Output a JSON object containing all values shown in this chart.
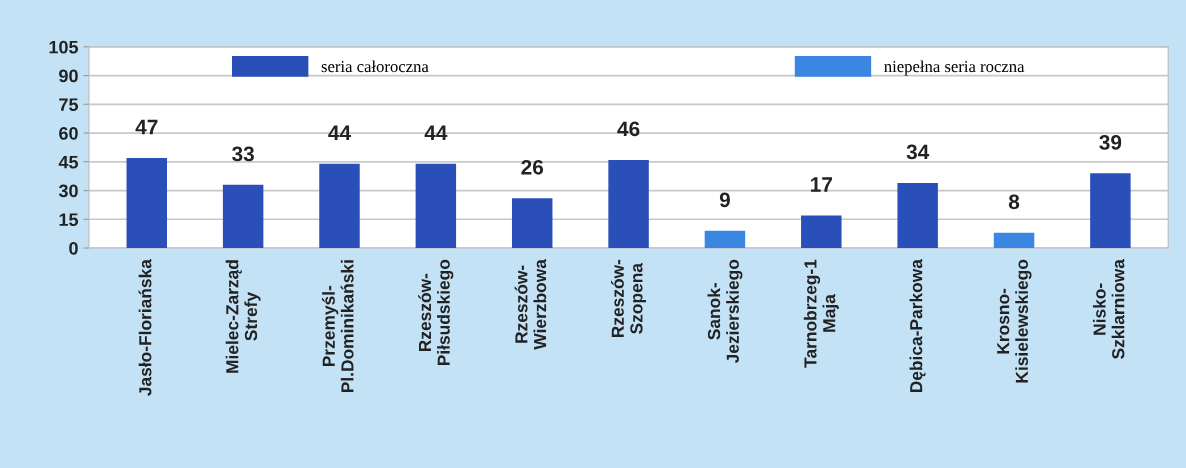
{
  "chart_data": {
    "type": "bar",
    "stacked": true,
    "categories": [
      "Jasło-Floriańska",
      "Mielec-Zarząd\nStrefy",
      "Przemyśl-\nPl.Dominikański",
      "Rzeszów-\nPiłsudskiego",
      "Rzeszów-\nWierzbowa",
      "Rzeszów-\nSzopena",
      "Sanok-\nJezierskiego",
      "Tarnobrzeg-1\nMaja",
      "Dębica-Parkowa",
      "Krosno-\nKisielewskiego",
      "Nisko-\nSzklarniowa"
    ],
    "series": [
      {
        "name": "seria całoroczna",
        "color": "#2b4fb8",
        "values": [
          47,
          33,
          44,
          44,
          26,
          46,
          null,
          17,
          34,
          null,
          39
        ]
      },
      {
        "name": "niepełna seria roczna",
        "color": "#3a86e0",
        "values": [
          null,
          null,
          null,
          null,
          null,
          null,
          9,
          null,
          null,
          8,
          null
        ]
      }
    ],
    "ylim": [
      0,
      105
    ],
    "yticks": [
      0,
      15,
      30,
      45,
      60,
      75,
      90,
      105
    ],
    "grid": "y",
    "legend": "top",
    "data_labels": true
  }
}
